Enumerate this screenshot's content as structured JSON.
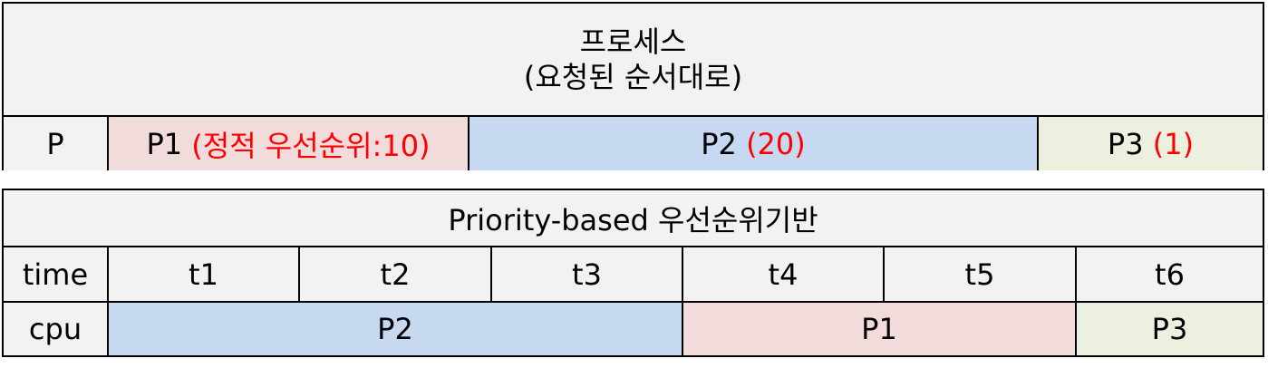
{
  "process_table": {
    "title_line1": "프로세스",
    "title_line2": "(요청된 순서대로)",
    "row_label": "P",
    "processes": [
      {
        "name": "P1",
        "priority": "(정적 우선순위:10)"
      },
      {
        "name": "P2",
        "priority": "(20)"
      },
      {
        "name": "P3",
        "priority": "(1)"
      }
    ]
  },
  "schedule_table": {
    "title": "Priority-based 우선순위기반",
    "time_label": "time",
    "times": [
      "t1",
      "t2",
      "t3",
      "t4",
      "t5",
      "t6"
    ],
    "cpu_label": "cpu",
    "cpu": [
      {
        "process": "P2",
        "span": "t1-t3"
      },
      {
        "process": "P1",
        "span": "t4-t5"
      },
      {
        "process": "P3",
        "span": "t6"
      }
    ]
  },
  "colors": {
    "P1": "#f2dcdb",
    "P2": "#c6d9f1",
    "P3": "#ebf1de",
    "priority_text": "#ff0000",
    "header_bg": "#f2f2f2"
  }
}
